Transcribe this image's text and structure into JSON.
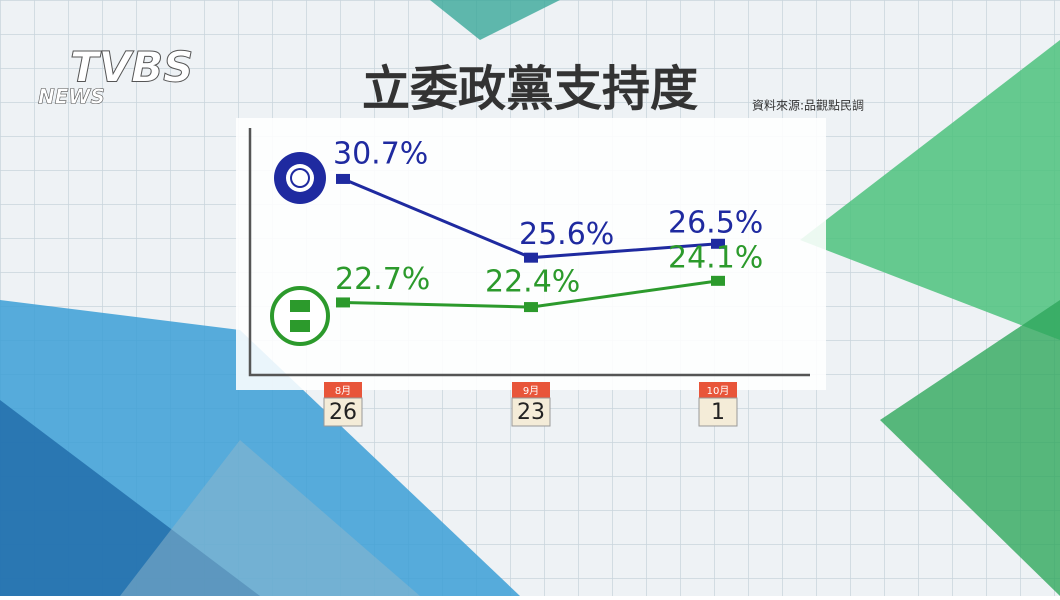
{
  "logo": "TVBS",
  "logo_sub": "NEWS",
  "chart_data": {
    "type": "line",
    "title": "立委政黨支持度",
    "source": "資料來源:品觀點民調",
    "categories": [
      {
        "month": "8月",
        "day": "26"
      },
      {
        "month": "9月",
        "day": "23"
      },
      {
        "month": "10月",
        "day": "1"
      }
    ],
    "series": [
      {
        "color": "#1f2aa0",
        "values": [
          30.7,
          25.6,
          26.5
        ],
        "value_labels": [
          "30.7%",
          "25.6%",
          "26.5%"
        ]
      },
      {
        "color": "#2c9a2c",
        "values": [
          22.7,
          22.4,
          24.1
        ],
        "value_labels": [
          "22.7%",
          "22.4%",
          "24.1%"
        ]
      }
    ],
    "ylim": [
      18,
      34
    ]
  }
}
